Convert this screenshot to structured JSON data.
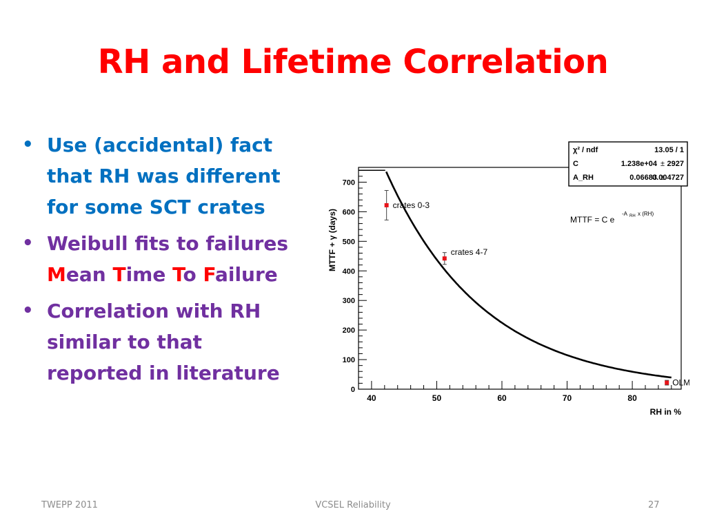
{
  "slide": {
    "title": "RH and Lifetime Correlation",
    "bullets": [
      {
        "lines": [
          "Use (accidental) fact",
          "that RH was different",
          "for some SCT crates"
        ]
      },
      {
        "line1": "Weibull fits to failures",
        "mtf": {
          "M": "M",
          "ean": "ean ",
          "T": "T",
          "ime": "ime ",
          "T2": "T",
          "o": "o ",
          "F": "F",
          "ailure": "ailure"
        }
      },
      {
        "lines": [
          "Correlation with RH",
          "similar to that",
          "reported in literature"
        ]
      }
    ],
    "footer": {
      "left": "TWEPP 2011",
      "center": "VCSEL Reliability",
      "right": "27"
    }
  },
  "chart_data": {
    "type": "scatter",
    "xlabel": "RH in %",
    "ylabel": "MTTF + γ (days)",
    "xlim": [
      38,
      87.5
    ],
    "ylim": [
      0,
      750
    ],
    "xticks": [
      40,
      50,
      60,
      70,
      80
    ],
    "yticks": [
      0,
      100,
      200,
      300,
      400,
      500,
      600,
      700
    ],
    "series": [
      {
        "name": "crates 0-3",
        "x": 42.3,
        "y": 622,
        "yerr": 50
      },
      {
        "name": "crates 4-7",
        "x": 51.2,
        "y": 442,
        "yerr": 20
      },
      {
        "name": "OLM",
        "x": 85.3,
        "y": 22,
        "yerr": 8
      }
    ],
    "fit": {
      "formula": "MTTF = C e",
      "exponent": "-A",
      "exp_sub": "RH",
      "exp_tail": " x (RH)",
      "C": 12380,
      "A_RH": 0.06683
    },
    "stats": [
      {
        "label": "χ² / ndf",
        "value": "13.05 / 1",
        "pm": "",
        "err": ""
      },
      {
        "label": "C",
        "value": "1.238e+04",
        "pm": "±",
        "err": "2927"
      },
      {
        "label": "A_RH",
        "value": "0.06683",
        "pm": "±",
        "err": "0.004727"
      }
    ],
    "colors": {
      "points": "#e8141a",
      "fit": "#000000"
    }
  }
}
